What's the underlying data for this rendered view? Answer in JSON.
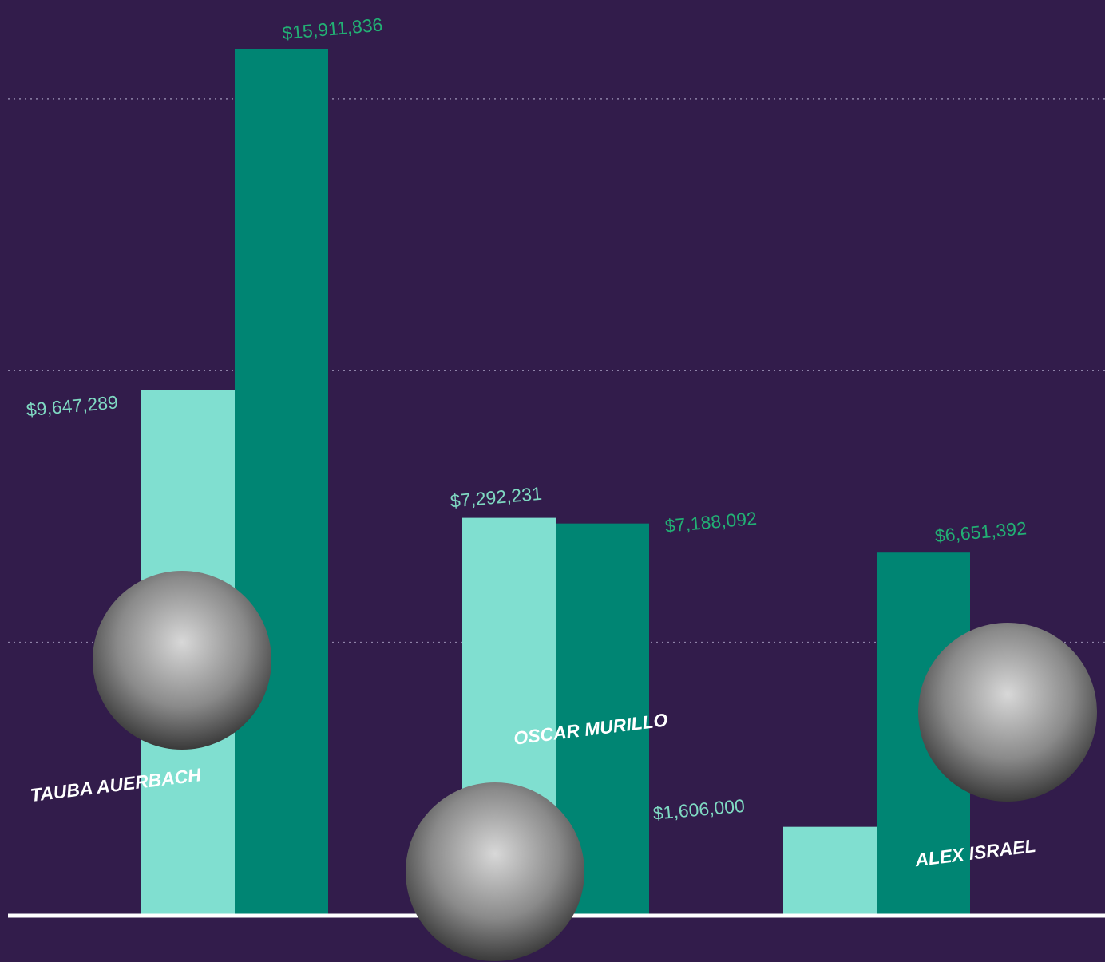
{
  "chart_data": {
    "type": "bar",
    "categories": [
      "TAUBA AUERBACH",
      "OSCAR MURILLO",
      "ALEX ISRAEL"
    ],
    "series": [
      {
        "color": "#80dfd0",
        "label_color": "#7fd9c2",
        "values": [
          9647289,
          7292231,
          1606000
        ],
        "value_labels": [
          "$9,647,289",
          "$7,292,231",
          "$1,606,000"
        ]
      },
      {
        "color": "#008573",
        "label_color": "#22b074",
        "values": [
          15911836,
          7188092,
          6651392
        ],
        "value_labels": [
          "$15,911,836",
          "$7,188,092",
          "$6,651,392"
        ]
      }
    ],
    "ylim": [
      0,
      16820000
    ],
    "yticks": [
      5000000,
      10000000,
      15000000
    ],
    "grid": true
  }
}
